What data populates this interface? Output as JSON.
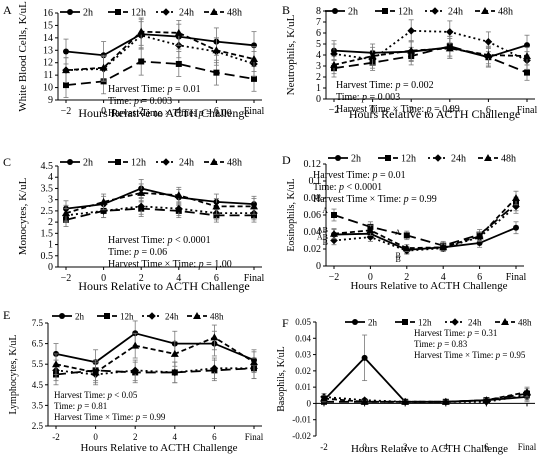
{
  "chart_data": [
    {
      "type": "line",
      "panel_letter": "A",
      "ylabel": "White Blood Cells, K/uL",
      "xlabel": "Hours Relative to ACTH Challenge",
      "categories": [
        "−2",
        "0",
        "2",
        "4",
        "6",
        "Final"
      ],
      "ylim": [
        9,
        16
      ],
      "yticks": [
        9,
        10,
        11,
        12,
        13,
        14,
        15,
        16
      ],
      "grid": false,
      "legend_position": "top",
      "series": [
        {
          "name": "2h",
          "values": [
            12.9,
            12.6,
            14.3,
            14.1,
            13.7,
            13.4
          ],
          "errors": [
            1.0,
            1.1,
            1.2,
            1.0,
            1.1,
            1.1
          ]
        },
        {
          "name": "12h",
          "values": [
            10.2,
            10.5,
            12.1,
            11.9,
            11.2,
            10.7
          ],
          "errors": [
            1.0,
            1.0,
            1.1,
            1.0,
            1.0,
            1.0
          ]
        },
        {
          "name": "24h",
          "values": [
            11.4,
            11.5,
            14.2,
            13.4,
            12.9,
            11.9
          ],
          "errors": [
            1.0,
            1.0,
            1.1,
            1.0,
            1.1,
            1.0
          ]
        },
        {
          "name": "48h",
          "values": [
            11.4,
            11.6,
            14.5,
            14.4,
            13.0,
            12.3
          ],
          "errors": [
            1.0,
            1.0,
            1.1,
            1.0,
            1.0,
            1.0
          ]
        }
      ],
      "annotations": [
        "Harvest Time: p = 0.01",
        "Time: p = 0.003",
        "Harvest Time × Time: p = 1.00"
      ]
    },
    {
      "type": "line",
      "panel_letter": "B",
      "ylabel": "Neutrophils, K/uL",
      "xlabel": "Hours Relative to ACTH Challenge",
      "categories": [
        "−2",
        "0",
        "2",
        "4",
        "6",
        "Final"
      ],
      "ylim": [
        0,
        8
      ],
      "yticks": [
        0,
        1,
        2,
        3,
        4,
        5,
        6,
        7,
        8
      ],
      "grid": false,
      "legend_position": "top",
      "series": [
        {
          "name": "2h",
          "values": [
            4.4,
            4.2,
            4.3,
            4.7,
            3.8,
            4.9
          ],
          "errors": [
            0.9,
            0.8,
            0.9,
            1.0,
            0.9,
            0.9
          ]
        },
        {
          "name": "12h",
          "values": [
            2.8,
            3.3,
            3.9,
            4.8,
            3.8,
            2.4
          ],
          "errors": [
            0.8,
            0.7,
            0.8,
            0.9,
            0.8,
            0.7
          ]
        },
        {
          "name": "24h",
          "values": [
            4.1,
            3.6,
            6.2,
            6.1,
            5.2,
            3.5
          ],
          "errors": [
            0.9,
            0.8,
            1.0,
            1.0,
            0.9,
            0.8
          ]
        },
        {
          "name": "48h",
          "values": [
            3.1,
            3.9,
            4.4,
            4.6,
            4.0,
            3.9
          ],
          "errors": [
            0.8,
            0.8,
            0.9,
            0.9,
            0.8,
            0.8
          ]
        }
      ],
      "annotations": [
        "Harvest Time: p = 0.002",
        "Time: p = 0.003",
        "Harvest Time × Time: p = 0.99"
      ]
    },
    {
      "type": "line",
      "panel_letter": "C",
      "ylabel": "Monocytes, K/uL",
      "xlabel": "Hours Relative to ACTH Challenge",
      "categories": [
        "−2",
        "0",
        "2",
        "4",
        "6",
        "Final"
      ],
      "ylim": [
        0,
        4.5
      ],
      "yticks": [
        0,
        0.5,
        1,
        1.5,
        2,
        2.5,
        3,
        3.5,
        4,
        4.5
      ],
      "grid": false,
      "legend_position": "top",
      "series": [
        {
          "name": "2h",
          "values": [
            2.6,
            2.8,
            3.5,
            3.1,
            2.9,
            2.8
          ],
          "errors": [
            0.35,
            0.35,
            0.4,
            0.35,
            0.35,
            0.35
          ]
        },
        {
          "name": "12h",
          "values": [
            2.1,
            2.5,
            2.6,
            2.5,
            2.3,
            2.3
          ],
          "errors": [
            0.3,
            0.3,
            0.35,
            0.3,
            0.3,
            0.3
          ]
        },
        {
          "name": "24h",
          "values": [
            2.3,
            2.5,
            2.7,
            2.6,
            2.4,
            2.4
          ],
          "errors": [
            0.3,
            0.3,
            0.35,
            0.3,
            0.3,
            0.3
          ]
        },
        {
          "name": "48h",
          "values": [
            2.4,
            2.9,
            3.3,
            3.2,
            2.7,
            2.7
          ],
          "errors": [
            0.35,
            0.35,
            0.4,
            0.35,
            0.35,
            0.35
          ]
        }
      ],
      "annotations": [
        "Harvest Time: p < 0.0001",
        "Time: p = 0.06",
        "Harvest Time × Time: p = 1.00"
      ]
    },
    {
      "type": "line",
      "panel_letter": "D",
      "ylabel": "Eosinophils, K/uL",
      "xlabel": "Hours Relative to ACTH Challenge",
      "categories": [
        "−2",
        "0",
        "2",
        "4",
        "6",
        "Final"
      ],
      "ylim": [
        0,
        0.12
      ],
      "yticks": [
        0,
        0.02,
        0.04,
        0.06,
        0.08,
        0.1,
        0.12
      ],
      "grid": false,
      "legend_position": "top",
      "series": [
        {
          "name": "2h",
          "values": [
            0.037,
            0.038,
            0.019,
            0.022,
            0.027,
            0.045
          ],
          "errors": [
            0.006,
            0.006,
            0.004,
            0.004,
            0.005,
            0.007
          ]
        },
        {
          "name": "12h",
          "values": [
            0.06,
            0.046,
            0.036,
            0.024,
            0.037,
            0.073
          ],
          "errors": [
            0.007,
            0.006,
            0.005,
            0.005,
            0.006,
            0.008
          ]
        },
        {
          "name": "24h",
          "values": [
            0.03,
            0.034,
            0.018,
            0.021,
            0.034,
            0.07
          ],
          "errors": [
            0.005,
            0.005,
            0.004,
            0.004,
            0.005,
            0.008
          ]
        },
        {
          "name": "48h",
          "values": [
            0.038,
            0.042,
            0.021,
            0.022,
            0.035,
            0.08
          ],
          "errors": [
            0.006,
            0.006,
            0.004,
            0.004,
            0.005,
            0.008
          ]
        }
      ],
      "letters": [
        {
          "category": "−2",
          "value": 0.066,
          "text": "A"
        },
        {
          "category": "−2",
          "value": 0.043,
          "text": "AB"
        },
        {
          "category": "−2",
          "value": 0.035,
          "text": "AB"
        },
        {
          "category": "−2",
          "value": 0.028,
          "text": "B"
        },
        {
          "category": "2",
          "value": 0.04,
          "text": "A"
        },
        {
          "category": "2",
          "value": 0.013,
          "text": "B"
        },
        {
          "category": "2",
          "value": 0.008,
          "text": "B"
        }
      ],
      "annotations": [
        "Harvest Time: p = 0.01",
        "Time: p < 0.0001",
        "Harvest Time × Time: p = 0.99"
      ]
    },
    {
      "type": "line",
      "panel_letter": "E",
      "ylabel": "Lymphocytes, K/uL",
      "xlabel": "Hours Relative to ACTH Challenge",
      "categories": [
        "-2",
        "0",
        "2",
        "4",
        "6",
        "Final"
      ],
      "ylim": [
        2.5,
        7.5
      ],
      "yticks": [
        2.5,
        3.5,
        4.5,
        5.5,
        6.5,
        7.5
      ],
      "grid": false,
      "legend_position": "top",
      "series": [
        {
          "name": "2h",
          "values": [
            6.0,
            5.6,
            7.0,
            6.5,
            6.5,
            5.7
          ],
          "errors": [
            0.5,
            0.6,
            0.6,
            0.6,
            0.6,
            0.5
          ]
        },
        {
          "name": "12h",
          "values": [
            5.0,
            5.2,
            5.1,
            5.1,
            5.2,
            5.3
          ],
          "errors": [
            0.5,
            0.5,
            0.5,
            0.5,
            0.5,
            0.5
          ]
        },
        {
          "name": "24h",
          "values": [
            5.2,
            5.0,
            5.2,
            5.1,
            5.3,
            5.3
          ],
          "errors": [
            0.5,
            0.5,
            0.5,
            0.5,
            0.5,
            0.5
          ]
        },
        {
          "name": "48h",
          "values": [
            5.5,
            5.1,
            6.4,
            6.0,
            6.8,
            5.6
          ],
          "errors": [
            0.5,
            0.5,
            0.6,
            0.6,
            0.6,
            0.5
          ]
        }
      ],
      "annotations": [
        "Harvest Time: p < 0.05",
        "Time: p = 0.81",
        "Harvest Time × Time: p = 0.99"
      ]
    },
    {
      "type": "line",
      "panel_letter": "F",
      "ylabel": "Basophils, K/uL",
      "xlabel": "Hours Relative to ACTH Challenge",
      "categories": [
        "-2",
        "0",
        "2",
        "4",
        "6",
        "Final"
      ],
      "ylim": [
        -0.02,
        0.05
      ],
      "yticks": [
        -0.02,
        -0.01,
        0,
        0.01,
        0.02,
        0.03,
        0.04,
        0.05
      ],
      "grid": false,
      "legend_position": "top",
      "series": [
        {
          "name": "2h",
          "values": [
            0.002,
            0.028,
            0.001,
            0.001,
            0.002,
            0.004
          ],
          "errors": [
            0.002,
            0.014,
            0.001,
            0.001,
            0.001,
            0.003
          ]
        },
        {
          "name": "12h",
          "values": [
            0.001,
            0.001,
            0.001,
            0.001,
            0.002,
            0.006
          ],
          "errors": [
            0.001,
            0.001,
            0.001,
            0.001,
            0.001,
            0.003
          ]
        },
        {
          "name": "24h",
          "values": [
            0.004,
            0.002,
            0.001,
            0.001,
            0.001,
            0.005
          ],
          "errors": [
            0.002,
            0.001,
            0.001,
            0.001,
            0.001,
            0.003
          ]
        },
        {
          "name": "48h",
          "values": [
            0.003,
            0.001,
            0.001,
            0.001,
            0.002,
            0.007
          ],
          "errors": [
            0.002,
            0.001,
            0.001,
            0.001,
            0.001,
            0.003
          ]
        }
      ],
      "annotations": [
        "Harvest Time: p = 0.31",
        "Time: p = 0.83",
        "Harvest Time × Time: p = 0.95"
      ]
    }
  ]
}
